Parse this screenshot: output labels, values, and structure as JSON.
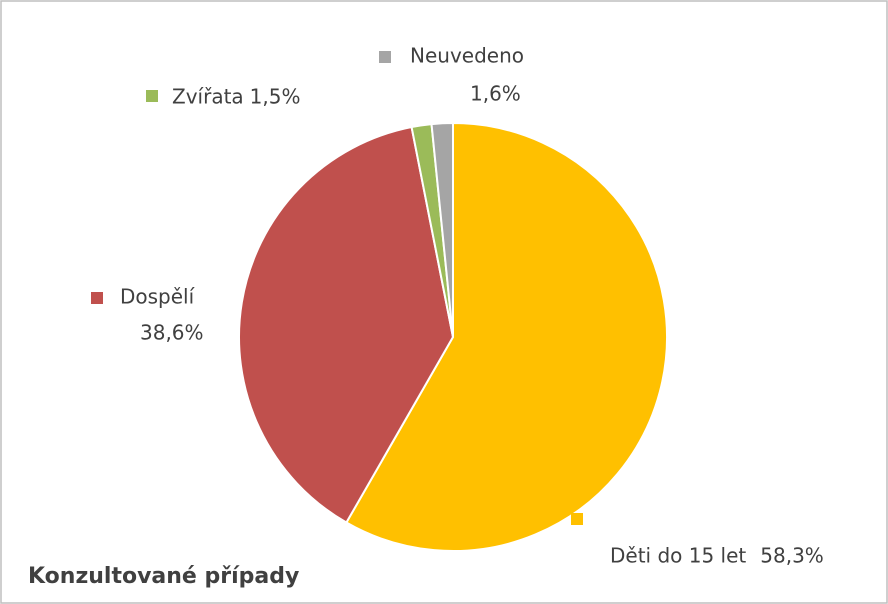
{
  "chart_data": {
    "type": "pie",
    "title": "Konzultované  případy",
    "categories": [
      "Děti do 15 let",
      "Dospělí",
      "Zvířata",
      "Neuvedeno"
    ],
    "values": [
      58.3,
      38.6,
      1.5,
      1.6
    ],
    "value_labels": [
      "58,3%",
      "38,6%",
      "1,5%",
      "1,6%"
    ],
    "colors": [
      "#ffc000",
      "#c0504d",
      "#9bbb59",
      "#a5a5a5"
    ]
  }
}
